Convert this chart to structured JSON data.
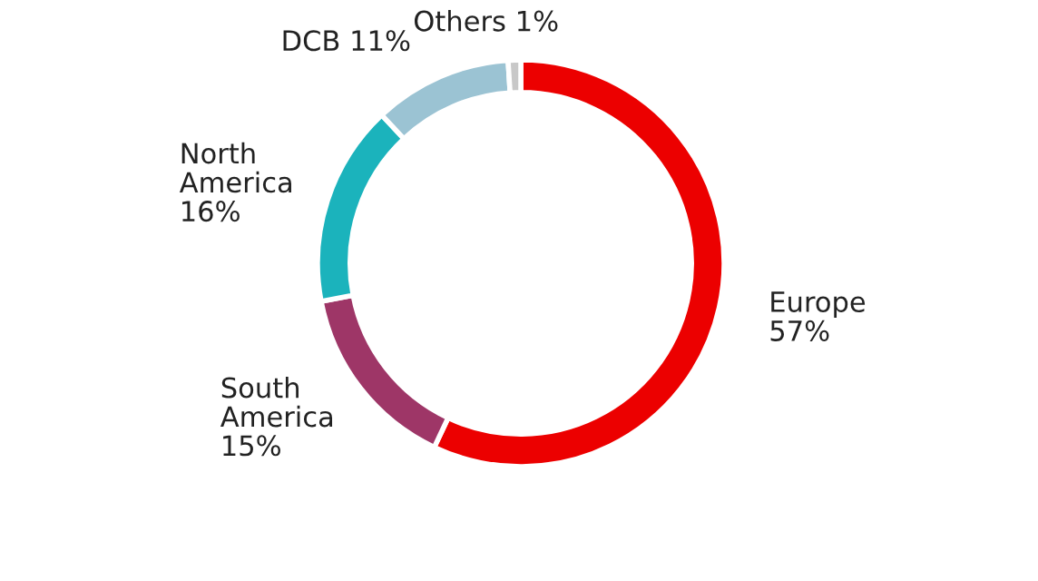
{
  "chart_data": {
    "type": "donut",
    "categories": [
      "Europe",
      "South\nAmerica",
      "North\nAmerica",
      "DCB",
      "Others"
    ],
    "values": [
      57,
      15,
      16,
      11,
      1
    ],
    "colors": [
      "#ec0000",
      "#9e3667",
      "#1bb3bc",
      "#9bc3d3",
      "#c8c8c8"
    ],
    "value_labels": [
      "57%",
      "15%",
      "16%",
      "11%",
      "1%"
    ]
  }
}
